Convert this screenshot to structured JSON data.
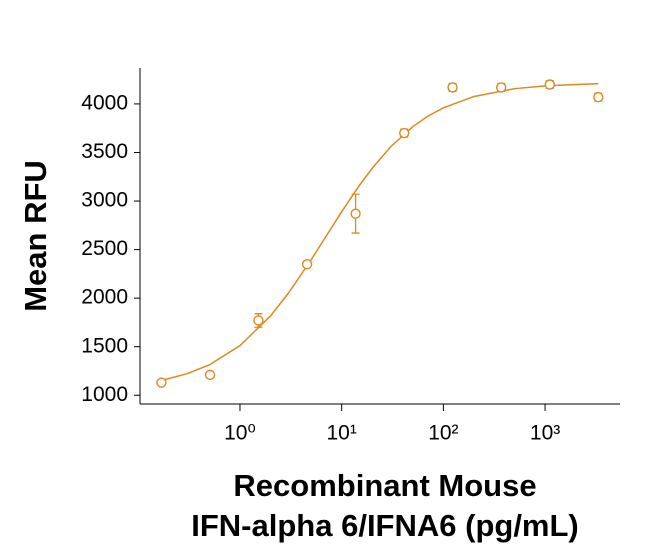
{
  "chart_data": {
    "type": "scatter",
    "y_label": "Mean RFU",
    "x_label": [
      "Recombinant Mouse",
      "IFN-alpha 6/IFNA6 (pg/mL)"
    ],
    "xscale": "log",
    "xlim": [
      0.104,
      5450
    ],
    "xticks": [
      {
        "value": 1,
        "label": "10⁰"
      },
      {
        "value": 10,
        "label": "10¹"
      },
      {
        "value": 100,
        "label": "10²"
      },
      {
        "value": 1000,
        "label": "10³"
      }
    ],
    "ylim": [
      910,
      4370
    ],
    "yticks": [
      1000,
      1500,
      2000,
      2500,
      3000,
      3500,
      4000
    ],
    "series": [
      {
        "color": "#e0881c",
        "x": [
          0.169,
          0.508,
          1.52,
          4.57,
          13.7,
          41.2,
          123,
          370,
          1111,
          3333
        ],
        "values": [
          1130,
          1210,
          1770,
          2350,
          2870,
          3700,
          4170,
          4170,
          4200,
          4070
        ],
        "errors": [
          20,
          15,
          70,
          20,
          200,
          40,
          40,
          40,
          40,
          40
        ]
      }
    ],
    "fit": {
      "color": "#e0881c",
      "x": [
        0.169,
        0.3,
        0.5,
        1,
        2,
        3,
        5,
        7,
        10,
        15,
        20,
        30,
        50,
        70,
        100,
        200,
        500,
        1000,
        3333
      ],
      "values": [
        1153,
        1221,
        1313,
        1511,
        1818,
        2053,
        2394,
        2635,
        2890,
        3164,
        3339,
        3554,
        3766,
        3873,
        3960,
        4077,
        4157,
        4186,
        4209
      ]
    }
  }
}
